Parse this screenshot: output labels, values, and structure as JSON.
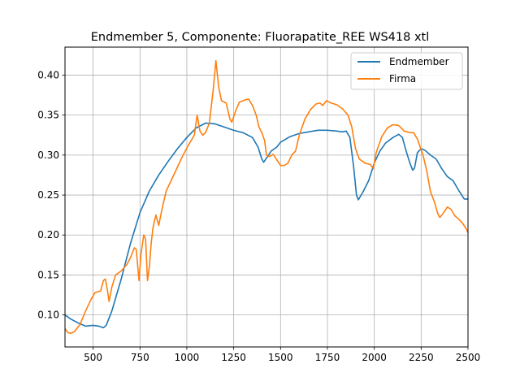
{
  "chart_data": {
    "type": "line",
    "title": "Endmember 5, Componente: Fluorapatite_REE WS418 xtl",
    "xlabel": "",
    "ylabel": "",
    "xlim": [
      350,
      2500
    ],
    "ylim": [
      0.06,
      0.435
    ],
    "xticks": [
      500,
      750,
      1000,
      1250,
      1500,
      1750,
      2000,
      2250,
      2500
    ],
    "xtick_labels": [
      "500",
      "750",
      "1000",
      "1250",
      "1500",
      "1750",
      "2000",
      "2250",
      "2500"
    ],
    "yticks": [
      0.1,
      0.15,
      0.2,
      0.25,
      0.3,
      0.35,
      0.4
    ],
    "ytick_labels": [
      "0.10",
      "0.15",
      "0.20",
      "0.25",
      "0.30",
      "0.35",
      "0.40"
    ],
    "grid": true,
    "legend_position": "top-right",
    "series": [
      {
        "name": "Endmember",
        "color": "#1f77b4",
        "points": [
          [
            350,
            0.1
          ],
          [
            380,
            0.095
          ],
          [
            420,
            0.09
          ],
          [
            460,
            0.086
          ],
          [
            500,
            0.087
          ],
          [
            530,
            0.086
          ],
          [
            555,
            0.084
          ],
          [
            570,
            0.087
          ],
          [
            600,
            0.105
          ],
          [
            650,
            0.145
          ],
          [
            700,
            0.19
          ],
          [
            750,
            0.228
          ],
          [
            800,
            0.255
          ],
          [
            850,
            0.275
          ],
          [
            900,
            0.292
          ],
          [
            950,
            0.308
          ],
          [
            1000,
            0.322
          ],
          [
            1050,
            0.334
          ],
          [
            1100,
            0.34
          ],
          [
            1150,
            0.339
          ],
          [
            1200,
            0.335
          ],
          [
            1250,
            0.331
          ],
          [
            1300,
            0.328
          ],
          [
            1350,
            0.322
          ],
          [
            1380,
            0.31
          ],
          [
            1400,
            0.295
          ],
          [
            1410,
            0.291
          ],
          [
            1430,
            0.298
          ],
          [
            1450,
            0.305
          ],
          [
            1480,
            0.31
          ],
          [
            1500,
            0.316
          ],
          [
            1550,
            0.323
          ],
          [
            1600,
            0.327
          ],
          [
            1650,
            0.329
          ],
          [
            1700,
            0.331
          ],
          [
            1750,
            0.331
          ],
          [
            1800,
            0.33
          ],
          [
            1830,
            0.329
          ],
          [
            1850,
            0.33
          ],
          [
            1870,
            0.322
          ],
          [
            1890,
            0.285
          ],
          [
            1905,
            0.25
          ],
          [
            1915,
            0.244
          ],
          [
            1940,
            0.254
          ],
          [
            1970,
            0.268
          ],
          [
            2000,
            0.29
          ],
          [
            2030,
            0.305
          ],
          [
            2060,
            0.315
          ],
          [
            2100,
            0.322
          ],
          [
            2130,
            0.326
          ],
          [
            2150,
            0.322
          ],
          [
            2170,
            0.305
          ],
          [
            2190,
            0.29
          ],
          [
            2205,
            0.281
          ],
          [
            2215,
            0.284
          ],
          [
            2230,
            0.303
          ],
          [
            2250,
            0.308
          ],
          [
            2270,
            0.306
          ],
          [
            2300,
            0.3
          ],
          [
            2330,
            0.295
          ],
          [
            2360,
            0.283
          ],
          [
            2390,
            0.273
          ],
          [
            2420,
            0.268
          ],
          [
            2450,
            0.256
          ],
          [
            2480,
            0.245
          ],
          [
            2500,
            0.245
          ]
        ]
      },
      {
        "name": "Firma",
        "color": "#ff7f0e",
        "points": [
          [
            350,
            0.083
          ],
          [
            365,
            0.078
          ],
          [
            380,
            0.077
          ],
          [
            400,
            0.079
          ],
          [
            430,
            0.088
          ],
          [
            460,
            0.105
          ],
          [
            490,
            0.12
          ],
          [
            510,
            0.128
          ],
          [
            540,
            0.13
          ],
          [
            555,
            0.143
          ],
          [
            565,
            0.145
          ],
          [
            575,
            0.133
          ],
          [
            585,
            0.117
          ],
          [
            600,
            0.135
          ],
          [
            620,
            0.15
          ],
          [
            650,
            0.155
          ],
          [
            680,
            0.163
          ],
          [
            700,
            0.172
          ],
          [
            720,
            0.184
          ],
          [
            730,
            0.182
          ],
          [
            745,
            0.143
          ],
          [
            755,
            0.175
          ],
          [
            770,
            0.2
          ],
          [
            780,
            0.195
          ],
          [
            790,
            0.143
          ],
          [
            800,
            0.16
          ],
          [
            810,
            0.19
          ],
          [
            820,
            0.21
          ],
          [
            835,
            0.225
          ],
          [
            850,
            0.212
          ],
          [
            870,
            0.235
          ],
          [
            890,
            0.255
          ],
          [
            920,
            0.27
          ],
          [
            950,
            0.285
          ],
          [
            980,
            0.3
          ],
          [
            1010,
            0.313
          ],
          [
            1040,
            0.325
          ],
          [
            1055,
            0.35
          ],
          [
            1070,
            0.33
          ],
          [
            1085,
            0.325
          ],
          [
            1100,
            0.328
          ],
          [
            1120,
            0.34
          ],
          [
            1140,
            0.38
          ],
          [
            1155,
            0.418
          ],
          [
            1170,
            0.385
          ],
          [
            1185,
            0.368
          ],
          [
            1210,
            0.365
          ],
          [
            1230,
            0.345
          ],
          [
            1240,
            0.341
          ],
          [
            1260,
            0.355
          ],
          [
            1280,
            0.366
          ],
          [
            1310,
            0.369
          ],
          [
            1330,
            0.37
          ],
          [
            1350,
            0.362
          ],
          [
            1370,
            0.35
          ],
          [
            1385,
            0.335
          ],
          [
            1400,
            0.328
          ],
          [
            1415,
            0.318
          ],
          [
            1425,
            0.3
          ],
          [
            1440,
            0.298
          ],
          [
            1460,
            0.301
          ],
          [
            1480,
            0.294
          ],
          [
            1500,
            0.287
          ],
          [
            1520,
            0.287
          ],
          [
            1540,
            0.29
          ],
          [
            1560,
            0.3
          ],
          [
            1580,
            0.305
          ],
          [
            1600,
            0.325
          ],
          [
            1630,
            0.345
          ],
          [
            1660,
            0.357
          ],
          [
            1690,
            0.364
          ],
          [
            1710,
            0.365
          ],
          [
            1725,
            0.362
          ],
          [
            1745,
            0.368
          ],
          [
            1770,
            0.365
          ],
          [
            1800,
            0.363
          ],
          [
            1830,
            0.358
          ],
          [
            1860,
            0.35
          ],
          [
            1880,
            0.335
          ],
          [
            1900,
            0.308
          ],
          [
            1920,
            0.295
          ],
          [
            1950,
            0.29
          ],
          [
            1980,
            0.288
          ],
          [
            1995,
            0.283
          ],
          [
            2010,
            0.303
          ],
          [
            2040,
            0.323
          ],
          [
            2070,
            0.334
          ],
          [
            2100,
            0.338
          ],
          [
            2130,
            0.337
          ],
          [
            2160,
            0.33
          ],
          [
            2190,
            0.328
          ],
          [
            2210,
            0.328
          ],
          [
            2230,
            0.32
          ],
          [
            2260,
            0.3
          ],
          [
            2280,
            0.28
          ],
          [
            2300,
            0.254
          ],
          [
            2320,
            0.242
          ],
          [
            2340,
            0.226
          ],
          [
            2350,
            0.222
          ],
          [
            2370,
            0.228
          ],
          [
            2390,
            0.235
          ],
          [
            2410,
            0.232
          ],
          [
            2430,
            0.224
          ],
          [
            2450,
            0.22
          ],
          [
            2470,
            0.215
          ],
          [
            2490,
            0.208
          ],
          [
            2500,
            0.203
          ]
        ]
      }
    ]
  }
}
